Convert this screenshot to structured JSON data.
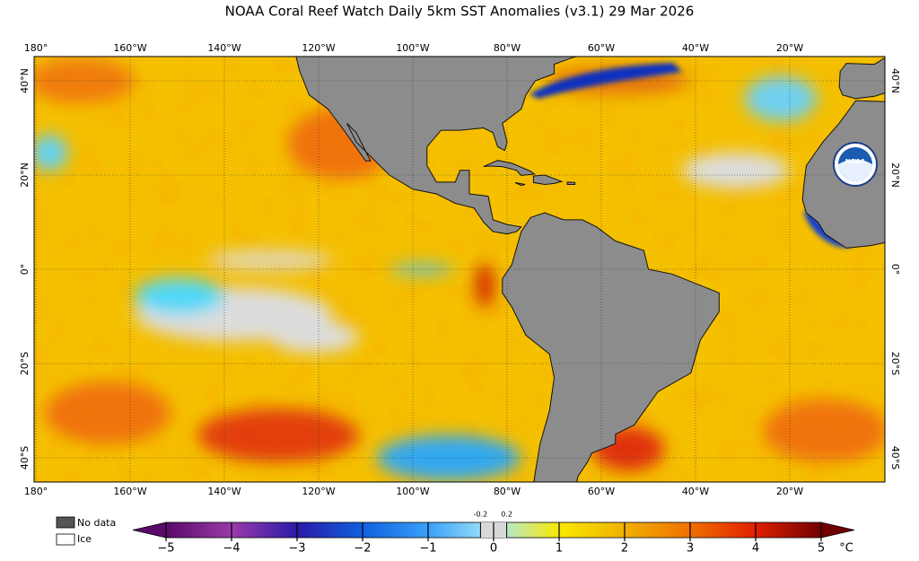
{
  "header": {
    "title": "NOAA Coral Reef Watch Daily 5km SST Anomalies  (v3.1)   29 Mar 2026"
  },
  "map": {
    "lon_labels": [
      "180°",
      "160°W",
      "140°W",
      "120°W",
      "100°W",
      "80°W",
      "60°W",
      "40°W",
      "20°W"
    ],
    "lat_labels": [
      "40°N",
      "20°N",
      "0°",
      "20°S",
      "40°S"
    ],
    "logo": "NOAA"
  },
  "legend": {
    "no_data": "No data",
    "ice": "Ice"
  },
  "colorbar": {
    "ticks": [
      {
        "value": -5,
        "label": "−5"
      },
      {
        "value": -4,
        "label": "−4"
      },
      {
        "value": -3,
        "label": "−3"
      },
      {
        "value": -2,
        "label": "−2"
      },
      {
        "value": -1,
        "label": "−1"
      },
      0,
      1,
      2,
      3,
      4,
      5
    ],
    "minor_ticks": [
      -0.2,
      0.2
    ],
    "unit": "°C",
    "colors": [
      "#5a0a6a",
      "#9a3aa8",
      "#2a1aa8",
      "#1060e0",
      "#3aa0f8",
      "#a8e8f8",
      "#f8e800",
      "#f0b000",
      "#f07000",
      "#e02000",
      "#700000"
    ],
    "neutral_color": "#d8d8d8"
  }
}
